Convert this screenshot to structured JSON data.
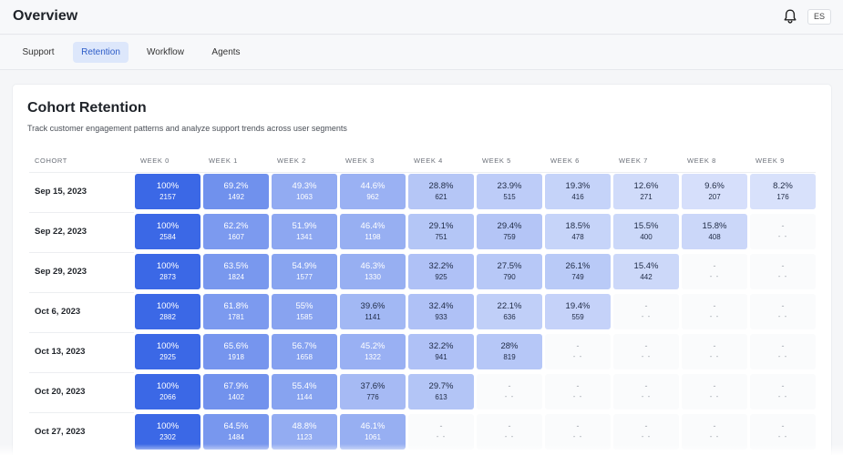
{
  "header": {
    "title": "Overview",
    "lang_label": "ES"
  },
  "tabs": [
    {
      "label": "Support",
      "active": false
    },
    {
      "label": "Retention",
      "active": true
    },
    {
      "label": "Workflow",
      "active": false
    },
    {
      "label": "Agents",
      "active": false
    }
  ],
  "card": {
    "title": "Cohort Retention",
    "subtitle": "Track customer engagement patterns and analyze support trends across user segments"
  },
  "table": {
    "cohort_header": "COHORT",
    "week_headers": [
      "WEEK 0",
      "WEEK 1",
      "WEEK 2",
      "WEEK 3",
      "WEEK 4",
      "WEEK 5",
      "WEEK 6",
      "WEEK 7",
      "WEEK 8",
      "WEEK 9"
    ],
    "empty_pct": "-",
    "empty_count": "- -",
    "rows": [
      {
        "cohort": "Sep 15, 2023",
        "cells": [
          {
            "pct": "100%",
            "count": "2157",
            "value": 100
          },
          {
            "pct": "69.2%",
            "count": "1492",
            "value": 69.2
          },
          {
            "pct": "49.3%",
            "count": "1063",
            "value": 49.3
          },
          {
            "pct": "44.6%",
            "count": "962",
            "value": 44.6
          },
          {
            "pct": "28.8%",
            "count": "621",
            "value": 28.8
          },
          {
            "pct": "23.9%",
            "count": "515",
            "value": 23.9
          },
          {
            "pct": "19.3%",
            "count": "416",
            "value": 19.3
          },
          {
            "pct": "12.6%",
            "count": "271",
            "value": 12.6
          },
          {
            "pct": "9.6%",
            "count": "207",
            "value": 9.6
          },
          {
            "pct": "8.2%",
            "count": "176",
            "value": 8.2
          }
        ]
      },
      {
        "cohort": "Sep 22, 2023",
        "cells": [
          {
            "pct": "100%",
            "count": "2584",
            "value": 100
          },
          {
            "pct": "62.2%",
            "count": "1607",
            "value": 62.2
          },
          {
            "pct": "51.9%",
            "count": "1341",
            "value": 51.9
          },
          {
            "pct": "46.4%",
            "count": "1198",
            "value": 46.4
          },
          {
            "pct": "29.1%",
            "count": "751",
            "value": 29.1
          },
          {
            "pct": "29.4%",
            "count": "759",
            "value": 29.4
          },
          {
            "pct": "18.5%",
            "count": "478",
            "value": 18.5
          },
          {
            "pct": "15.5%",
            "count": "400",
            "value": 15.5
          },
          {
            "pct": "15.8%",
            "count": "408",
            "value": 15.8
          },
          null
        ]
      },
      {
        "cohort": "Sep 29, 2023",
        "cells": [
          {
            "pct": "100%",
            "count": "2873",
            "value": 100
          },
          {
            "pct": "63.5%",
            "count": "1824",
            "value": 63.5
          },
          {
            "pct": "54.9%",
            "count": "1577",
            "value": 54.9
          },
          {
            "pct": "46.3%",
            "count": "1330",
            "value": 46.3
          },
          {
            "pct": "32.2%",
            "count": "925",
            "value": 32.2
          },
          {
            "pct": "27.5%",
            "count": "790",
            "value": 27.5
          },
          {
            "pct": "26.1%",
            "count": "749",
            "value": 26.1
          },
          {
            "pct": "15.4%",
            "count": "442",
            "value": 15.4
          },
          null,
          null
        ]
      },
      {
        "cohort": "Oct 6, 2023",
        "cells": [
          {
            "pct": "100%",
            "count": "2882",
            "value": 100
          },
          {
            "pct": "61.8%",
            "count": "1781",
            "value": 61.8
          },
          {
            "pct": "55%",
            "count": "1585",
            "value": 55
          },
          {
            "pct": "39.6%",
            "count": "1141",
            "value": 39.6
          },
          {
            "pct": "32.4%",
            "count": "933",
            "value": 32.4
          },
          {
            "pct": "22.1%",
            "count": "636",
            "value": 22.1
          },
          {
            "pct": "19.4%",
            "count": "559",
            "value": 19.4
          },
          null,
          null,
          null
        ]
      },
      {
        "cohort": "Oct 13, 2023",
        "cells": [
          {
            "pct": "100%",
            "count": "2925",
            "value": 100
          },
          {
            "pct": "65.6%",
            "count": "1918",
            "value": 65.6
          },
          {
            "pct": "56.7%",
            "count": "1658",
            "value": 56.7
          },
          {
            "pct": "45.2%",
            "count": "1322",
            "value": 45.2
          },
          {
            "pct": "32.2%",
            "count": "941",
            "value": 32.2
          },
          {
            "pct": "28%",
            "count": "819",
            "value": 28
          },
          null,
          null,
          null,
          null
        ]
      },
      {
        "cohort": "Oct 20, 2023",
        "cells": [
          {
            "pct": "100%",
            "count": "2066",
            "value": 100
          },
          {
            "pct": "67.9%",
            "count": "1402",
            "value": 67.9
          },
          {
            "pct": "55.4%",
            "count": "1144",
            "value": 55.4
          },
          {
            "pct": "37.6%",
            "count": "776",
            "value": 37.6
          },
          {
            "pct": "29.7%",
            "count": "613",
            "value": 29.7
          },
          null,
          null,
          null,
          null,
          null
        ]
      },
      {
        "cohort": "Oct 27, 2023",
        "cells": [
          {
            "pct": "100%",
            "count": "2302",
            "value": 100
          },
          {
            "pct": "64.5%",
            "count": "1484",
            "value": 64.5
          },
          {
            "pct": "48.8%",
            "count": "1123",
            "value": 48.8
          },
          {
            "pct": "46.1%",
            "count": "1061",
            "value": 46.1
          },
          null,
          null,
          null,
          null,
          null,
          null
        ]
      }
    ]
  },
  "colors": {
    "accent": "#3264e0",
    "tab_active_bg": "#dde7fb",
    "cell_dark": "#3b68e6",
    "cell_light": "#e6ecfd"
  }
}
